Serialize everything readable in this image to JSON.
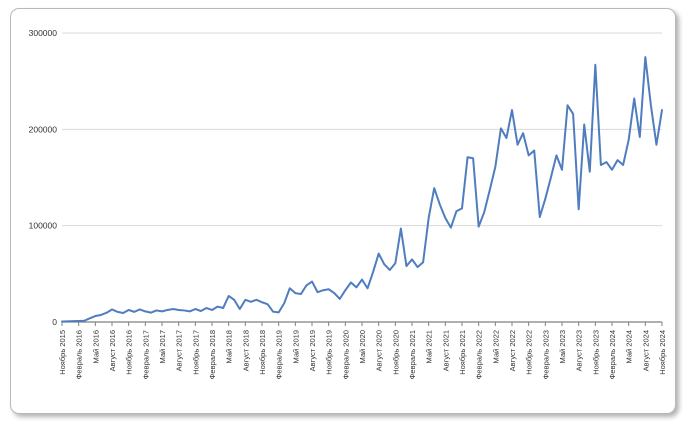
{
  "window": {
    "background_color": "#ffffff",
    "card_border_color": "#b9b9b9"
  },
  "chart_data": {
    "type": "line",
    "title": "",
    "legend": "none",
    "grid": "horizontal",
    "line_color": "#4f7dbf",
    "gridline_color": "#d9d9d9",
    "axis_color": "#808080",
    "label_color": "#333333",
    "x_axis": {
      "frequency": "monthly",
      "start": "Ноябрь 2015",
      "end": "Ноябрь 2024",
      "tick_every": 3,
      "tick_labels": [
        "Ноябрь 2015",
        "Февраль 2016",
        "Май 2016",
        "Август 2016",
        "Ноябрь 2016",
        "Февраль 2017",
        "Май 2017",
        "Август 2017",
        "Ноябрь 2017",
        "Февраль 2018",
        "Май 2018",
        "Август 2018",
        "Ноябрь 2018",
        "Февраль 2019",
        "Май 2019",
        "Август 2019",
        "Ноябрь 2019",
        "Февраль 2020",
        "Май 2020",
        "Август 2020",
        "Ноябрь 2020",
        "Февраль 2021",
        "Май 2021",
        "Август 2021",
        "Ноябрь 2021",
        "Февраль 2022",
        "Май 2022",
        "Август 2022",
        "Ноябрь 2022",
        "Февраль 2023",
        "Май 2023",
        "Август 2023",
        "Ноябрь 2023",
        "Февраль 2024",
        "Май 2024",
        "Август 2024",
        "Ноябрь 2024"
      ]
    },
    "y_axis": {
      "range": [
        0,
        300000
      ],
      "ticks": [
        0,
        100000,
        200000,
        300000
      ],
      "tick_labels": [
        "0",
        "100000",
        "200000",
        "300000"
      ]
    },
    "values": [
      500,
      700,
      900,
      1100,
      1300,
      3800,
      6200,
      7300,
      9500,
      13000,
      10500,
      9300,
      12500,
      10500,
      13000,
      11000,
      9700,
      12000,
      11000,
      12500,
      13500,
      12500,
      12000,
      11000,
      13500,
      11400,
      14500,
      12500,
      16000,
      14500,
      27000,
      23000,
      13500,
      23000,
      21000,
      23000,
      20500,
      18500,
      10700,
      10000,
      19500,
      35000,
      30000,
      29000,
      38000,
      42000,
      31000,
      33000,
      34000,
      30000,
      24000,
      33000,
      41000,
      36000,
      44000,
      35000,
      52000,
      71000,
      60000,
      54000,
      61000,
      97000,
      58000,
      65000,
      57000,
      62000,
      108000,
      139000,
      122000,
      108000,
      98000,
      115000,
      118000,
      171000,
      170000,
      99000,
      114000,
      137000,
      161000,
      201000,
      191000,
      220000,
      184000,
      196000,
      173000,
      178000,
      109000,
      128000,
      150000,
      173000,
      158000,
      225000,
      216000,
      117000,
      205000,
      156000,
      267000,
      163000,
      166000,
      158000,
      168000,
      163000,
      189000,
      232000,
      192000,
      275000,
      225000,
      184000,
      220000
    ]
  }
}
